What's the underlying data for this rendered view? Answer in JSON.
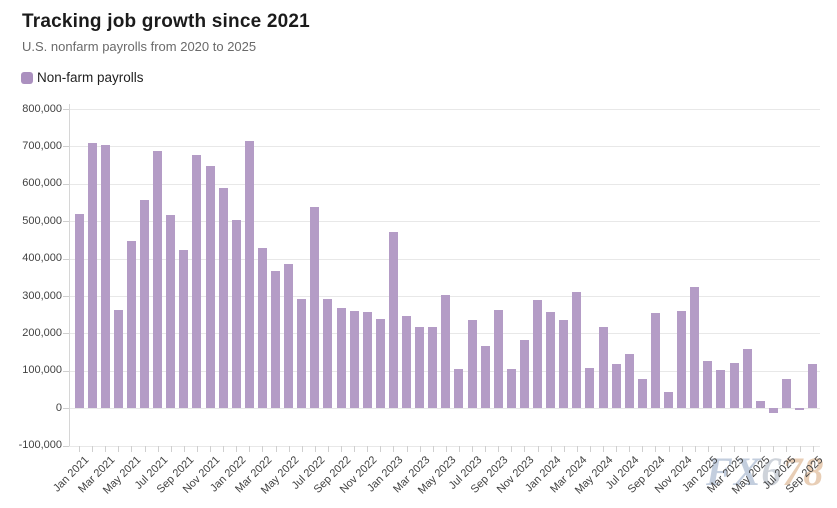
{
  "header": {
    "title": "Tracking job growth since 2021",
    "subtitle": "U.S. nonfarm payrolls from 2020 to 2025"
  },
  "legend": {
    "label": "Non-farm payrolls",
    "swatch_color": "#ab90bf"
  },
  "watermark": {
    "text": "FX678",
    "letter_colors": [
      "#b5c2d7",
      "#b5c2d7",
      "#c3c9d2",
      "#e3c3a4",
      "#e3c3a4"
    ]
  },
  "chart_data": {
    "type": "bar",
    "title": "Tracking job growth since 2021",
    "subtitle": "U.S. nonfarm payrolls from 2020 to 2025",
    "series_name": "Non-farm payrolls",
    "bar_color": "#b49cc6",
    "grid": true,
    "legend_position": "top-left",
    "ylim": [
      -100000,
      800000
    ],
    "y_ticks": [
      800000,
      700000,
      600000,
      500000,
      400000,
      300000,
      200000,
      100000,
      0,
      -100000
    ],
    "x_label_every": 2,
    "x": [
      "Jan 2021",
      "Feb 2021",
      "Mar 2021",
      "Apr 2021",
      "May 2021",
      "Jun 2021",
      "Jul 2021",
      "Aug 2021",
      "Sep 2021",
      "Oct 2021",
      "Nov 2021",
      "Dec 2021",
      "Jan 2022",
      "Feb 2022",
      "Mar 2022",
      "Apr 2022",
      "May 2022",
      "Jun 2022",
      "Jul 2022",
      "Aug 2022",
      "Sep 2022",
      "Oct 2022",
      "Nov 2022",
      "Dec 2022",
      "Jan 2023",
      "Feb 2023",
      "Mar 2023",
      "Apr 2023",
      "May 2023",
      "Jun 2023",
      "Jul 2023",
      "Aug 2023",
      "Sep 2023",
      "Oct 2023",
      "Nov 2023",
      "Dec 2023",
      "Jan 2024",
      "Feb 2024",
      "Mar 2024",
      "Apr 2024",
      "May 2024",
      "Jun 2024",
      "Jul 2024",
      "Aug 2024",
      "Sep 2024",
      "Oct 2024",
      "Nov 2024",
      "Dec 2024",
      "Jan 2025",
      "Feb 2025",
      "Mar 2025",
      "Apr 2025",
      "May 2025",
      "Jun 2025",
      "Jul 2025",
      "Aug 2025",
      "Sep 2025"
    ],
    "values": [
      520000,
      710000,
      704000,
      263000,
      447000,
      557000,
      689000,
      517000,
      424000,
      677000,
      647000,
      588000,
      504000,
      714000,
      428000,
      368000,
      386000,
      293000,
      537000,
      292000,
      267000,
      261000,
      256000,
      238000,
      472000,
      246000,
      216000,
      217000,
      303000,
      105000,
      236000,
      165000,
      262000,
      105000,
      182000,
      290000,
      256000,
      236000,
      310000,
      108000,
      216000,
      118000,
      144000,
      78000,
      255000,
      44000,
      261000,
      323000,
      125000,
      102000,
      120000,
      158000,
      19000,
      -13000,
      79000,
      -4000,
      119000
    ]
  }
}
